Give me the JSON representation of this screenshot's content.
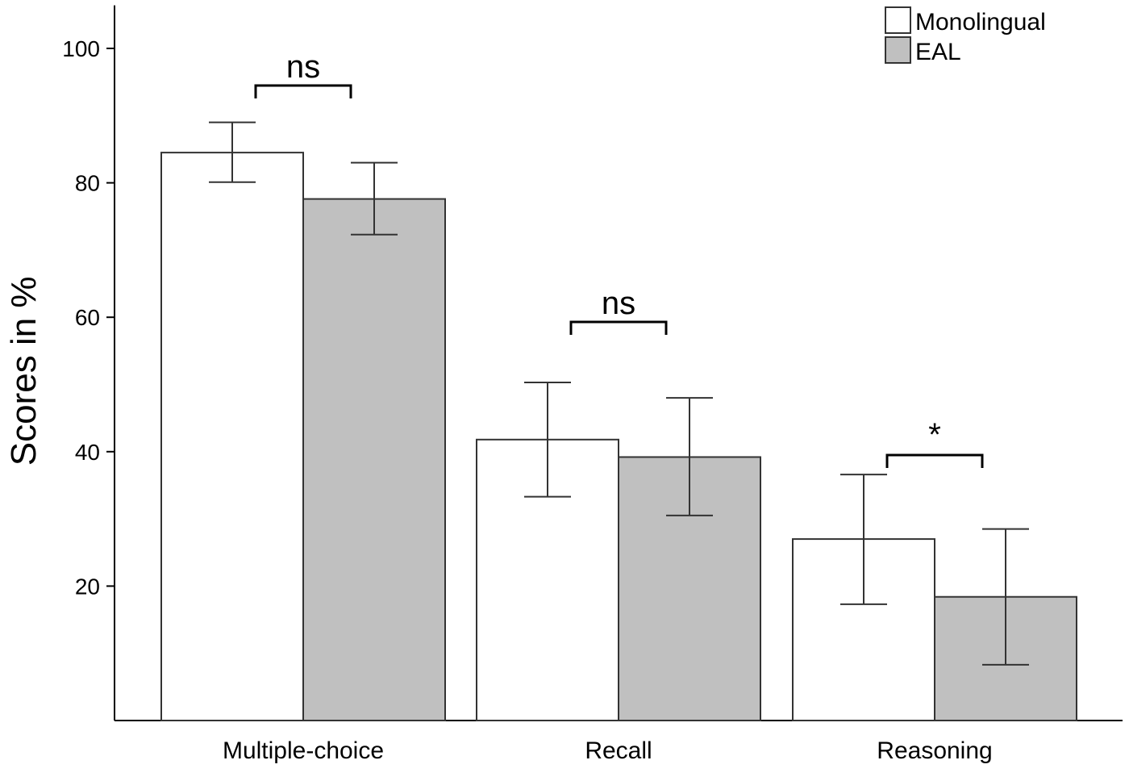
{
  "chart_data": {
    "type": "bar",
    "title": "",
    "xlabel": "",
    "ylabel": "Scores in %",
    "ylim": [
      0,
      104
    ],
    "yticks": [
      20,
      40,
      60,
      80,
      100
    ],
    "categories": [
      "Multiple-choice",
      "Recall",
      "Reasoning"
    ],
    "series": [
      {
        "name": "Monolingual",
        "color": "#ffffff",
        "values": [
          84.5,
          41.8,
          27.0
        ],
        "error_low": [
          80.1,
          33.3,
          17.3
        ],
        "error_high": [
          89.0,
          50.3,
          36.6
        ]
      },
      {
        "name": "EAL",
        "color": "#c0c0c0",
        "values": [
          77.6,
          39.2,
          18.4
        ],
        "error_low": [
          72.3,
          30.5,
          8.3
        ],
        "error_high": [
          83.0,
          48.0,
          28.5
        ]
      }
    ],
    "significance": [
      {
        "category": "Multiple-choice",
        "label": "ns"
      },
      {
        "category": "Recall",
        "label": "ns"
      },
      {
        "category": "Reasoning",
        "label": "*"
      }
    ],
    "legend_position": "top-right",
    "grid": false
  }
}
